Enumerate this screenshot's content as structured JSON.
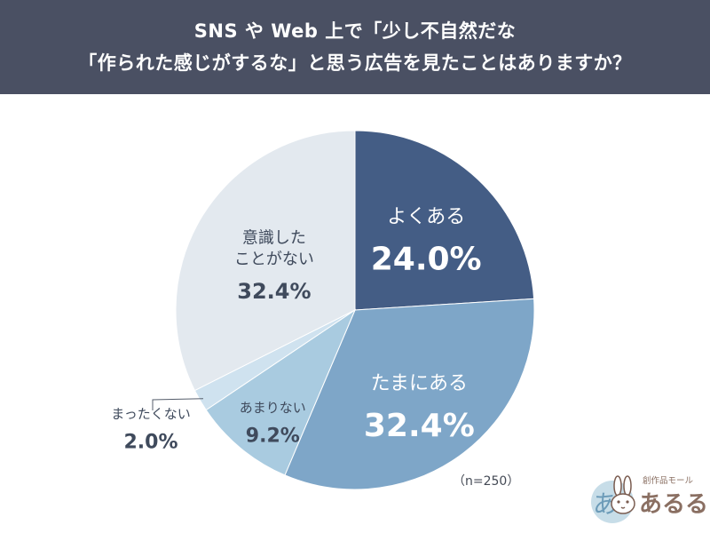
{
  "header": {
    "title_line1": "SNS や Web 上で「少し不自然だな",
    "title_line2": "「作られた感じがするな」と思う広告を見たことはありますか？"
  },
  "chart_data": {
    "type": "pie",
    "unit": "%",
    "slices": [
      {
        "label": "よくある",
        "value": 24.0,
        "value_label": "24.0%",
        "color": "#445d85"
      },
      {
        "label": "たまにある",
        "value": 32.4,
        "value_label": "32.4%",
        "color": "#7ea6c8"
      },
      {
        "label": "あまりない",
        "value": 9.2,
        "value_label": "9.2%",
        "color": "#a9cbe0"
      },
      {
        "label": "まったくない",
        "value": 2.0,
        "value_label": "2.0%",
        "color": "#cfe2ef"
      },
      {
        "label": "意識したことがない",
        "label_lines": [
          "意識した",
          "ことがない"
        ],
        "value": 32.4,
        "value_label": "32.4%",
        "color": "#e3e9ef"
      }
    ],
    "sample_note": "（n=250）"
  },
  "brand": {
    "tagline": "創作品モール",
    "name": "あるる"
  }
}
